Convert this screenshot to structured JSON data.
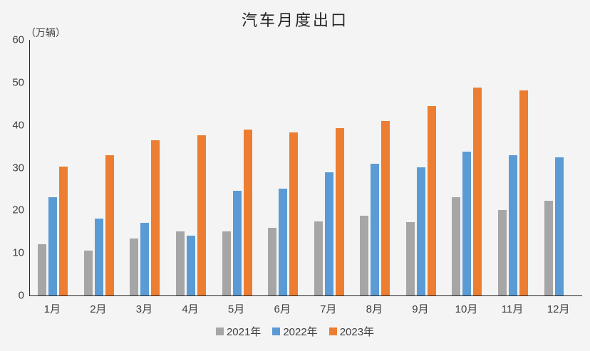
{
  "page": {
    "background": "#f4f4f4",
    "axis_color": "#262626",
    "text_color": "#404040"
  },
  "chart_data": {
    "type": "bar",
    "title": "汽车月度出口",
    "unit_label": "（万辆）",
    "categories": [
      "1月",
      "2月",
      "3月",
      "4月",
      "5月",
      "6月",
      "7月",
      "8月",
      "9月",
      "10月",
      "11月",
      "12月"
    ],
    "series": [
      {
        "name": "2021年",
        "color": "#a6a6a6",
        "values": [
          12.0,
          10.6,
          13.3,
          15.1,
          15.1,
          15.9,
          17.4,
          18.8,
          17.3,
          23.1,
          20.0,
          22.3
        ]
      },
      {
        "name": "2022年",
        "color": "#5b9bd5",
        "values": [
          23.1,
          18.1,
          17.1,
          14.1,
          24.5,
          25.0,
          28.9,
          30.9,
          30.1,
          33.7,
          33.0,
          32.4
        ]
      },
      {
        "name": "2023年",
        "color": "#ed7d31",
        "values": [
          30.2,
          33.0,
          36.5,
          37.6,
          38.9,
          38.2,
          39.2,
          40.9,
          44.4,
          48.8,
          48.2,
          null
        ]
      }
    ],
    "ylim": [
      0,
      60
    ],
    "y_ticks": [
      0,
      10,
      20,
      30,
      40,
      50,
      60
    ],
    "grid": false,
    "legend_position": "bottom",
    "xlabel": "",
    "ylabel": "（万辆）"
  }
}
